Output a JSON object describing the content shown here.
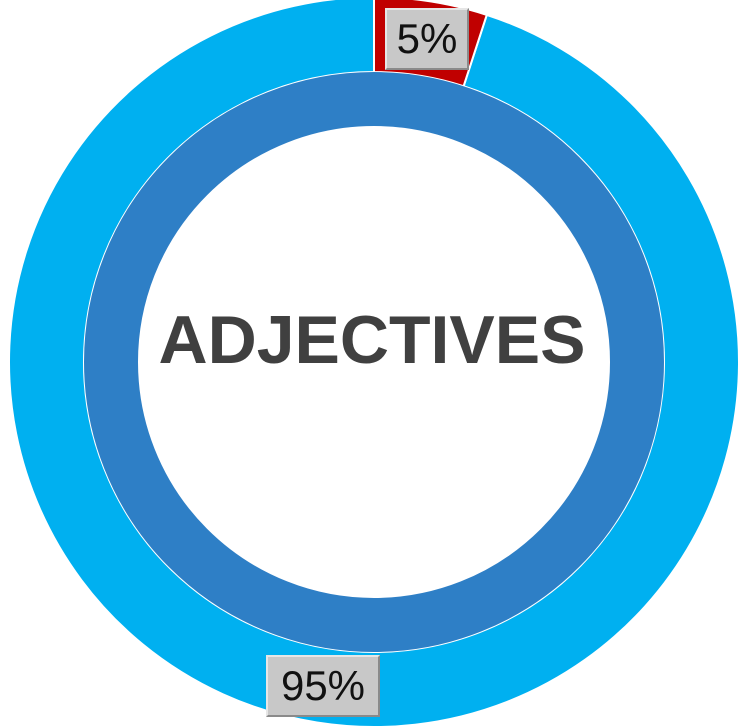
{
  "chart_data": {
    "type": "donut",
    "center_label": "ADJECTIVES",
    "series": [
      {
        "slices": [
          {
            "value": 95,
            "label": "95%",
            "color": "#00B0F0"
          },
          {
            "value": 5,
            "label": "5%",
            "color": "#C00000"
          }
        ]
      },
      {
        "slices": [
          {
            "value": 100,
            "color": "#2E7FC6"
          }
        ]
      }
    ]
  }
}
